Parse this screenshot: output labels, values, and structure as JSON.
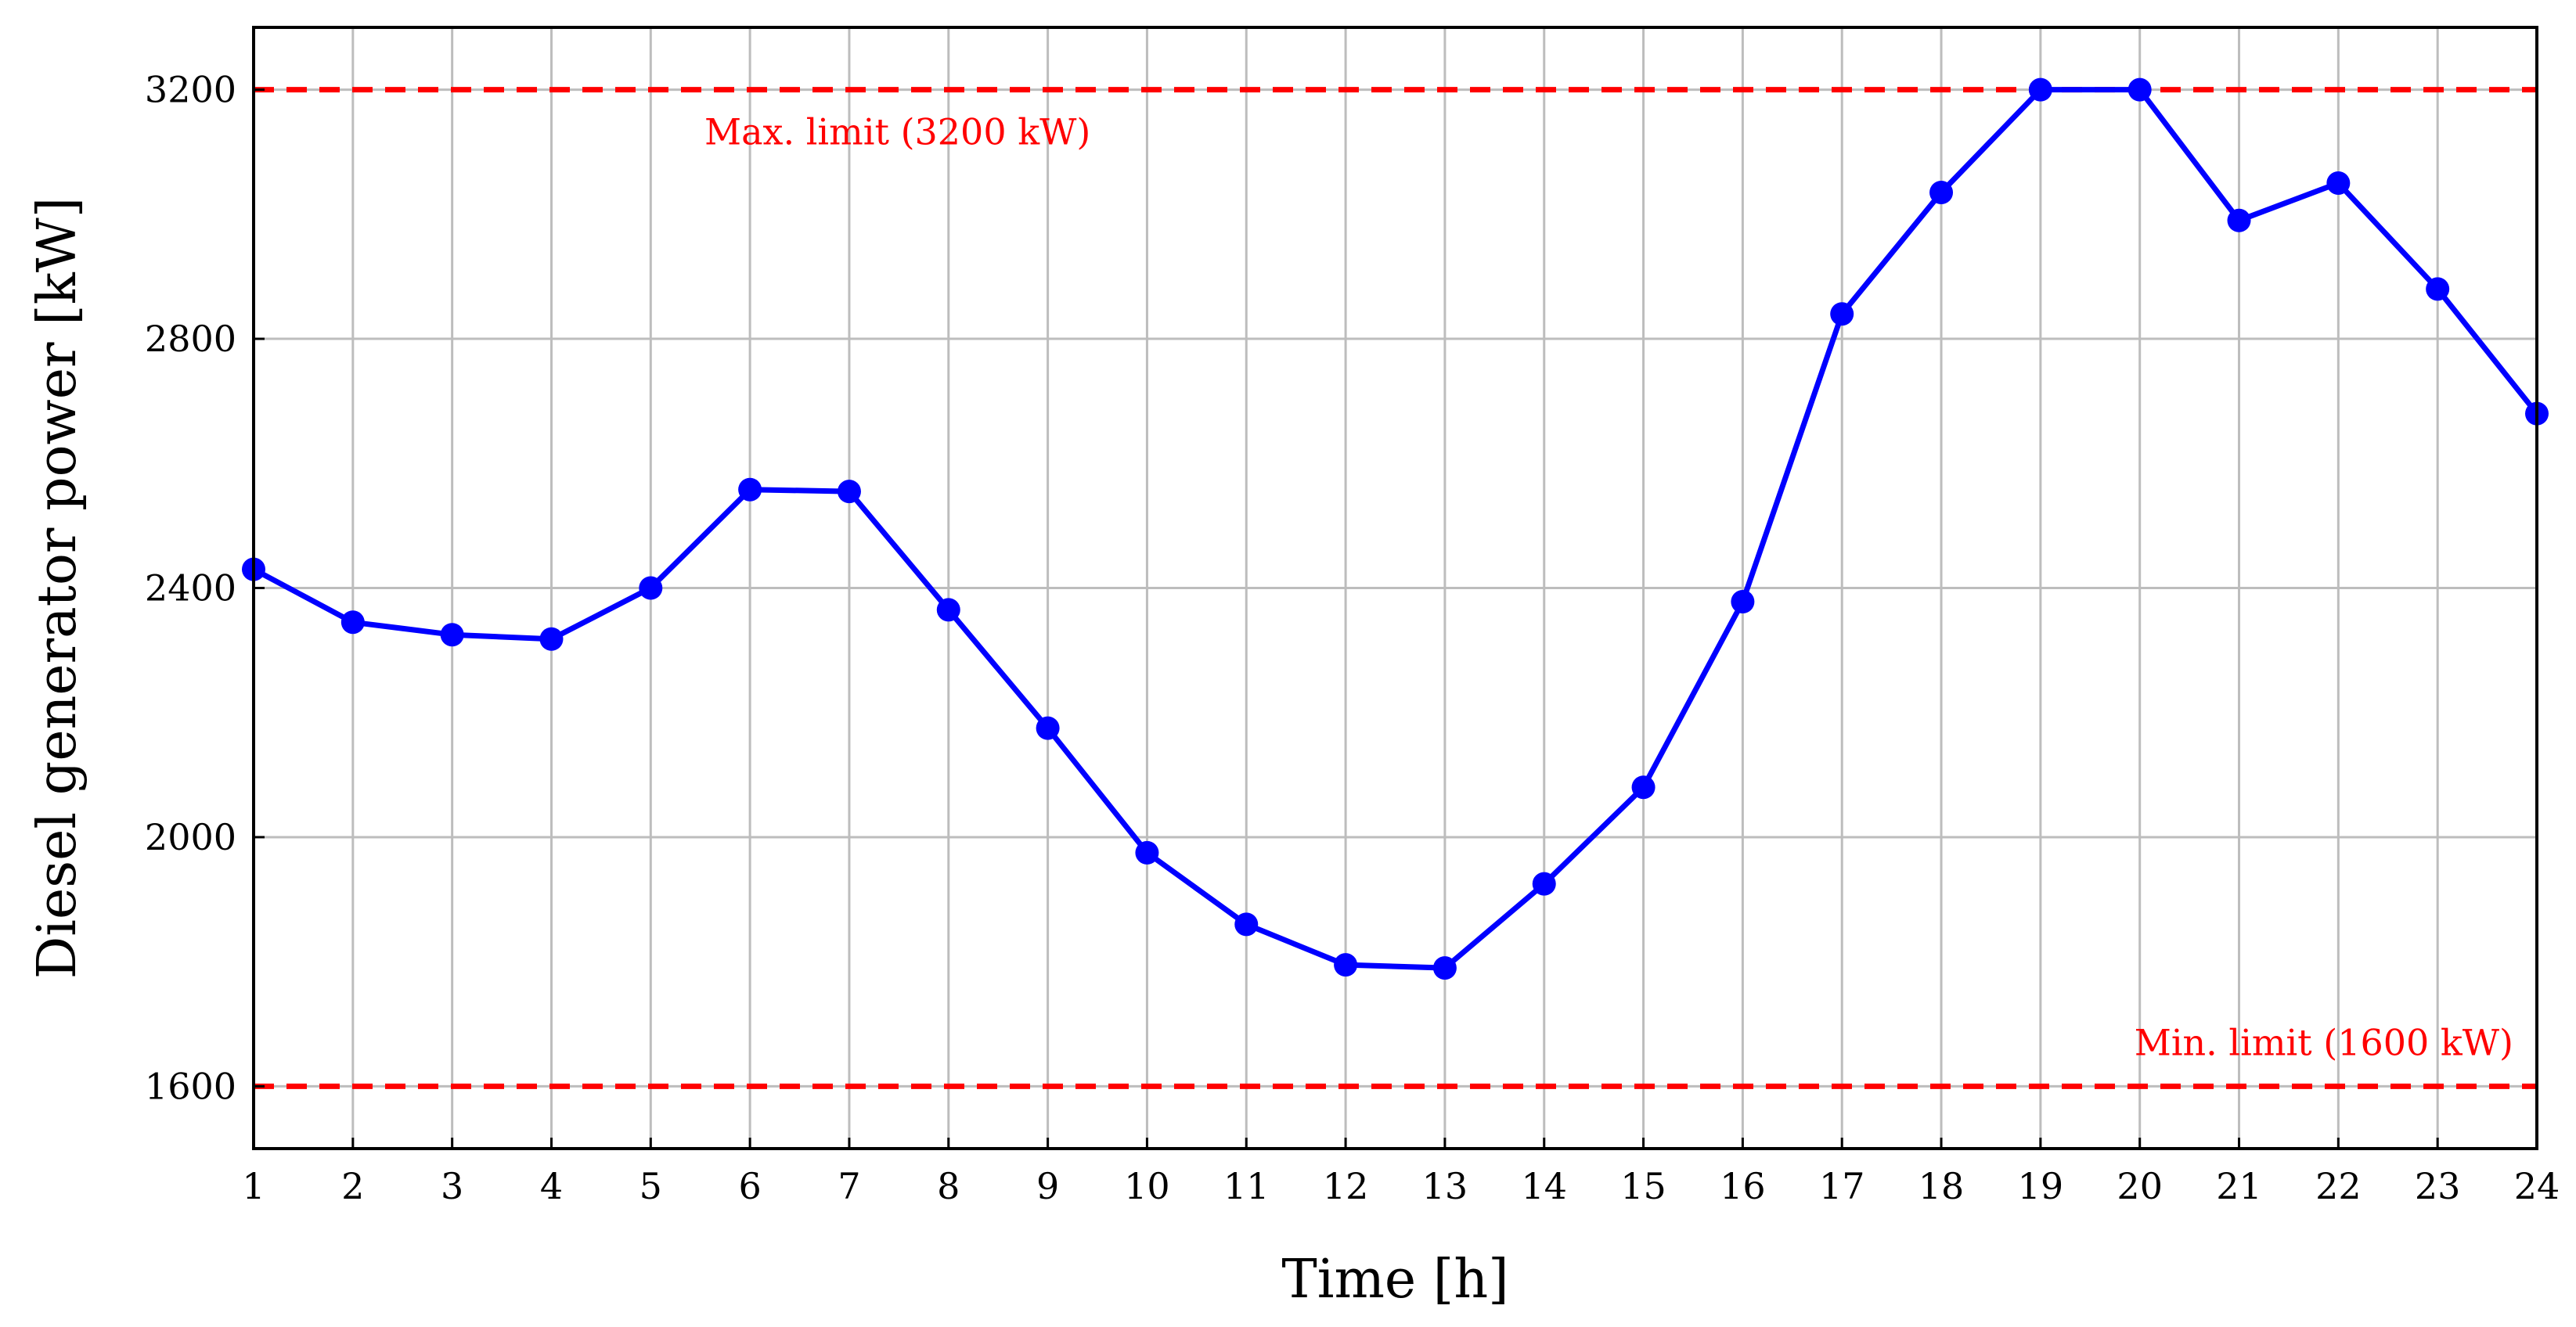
{
  "chart_data": {
    "type": "line",
    "title": "",
    "xlabel": "Time [h]",
    "ylabel": "Diesel generator power [kW]",
    "xlim": [
      1,
      24
    ],
    "ylim": [
      1500,
      3300
    ],
    "x_ticks": [
      "1",
      "2",
      "3",
      "4",
      "5",
      "6",
      "7",
      "8",
      "9",
      "10",
      "11",
      "12",
      "13",
      "14",
      "15",
      "16",
      "17",
      "18",
      "19",
      "20",
      "21",
      "22",
      "23",
      "24"
    ],
    "y_ticks": [
      "1600",
      "2000",
      "2400",
      "2800",
      "3200"
    ],
    "grid": true,
    "x": [
      1,
      2,
      3,
      4,
      5,
      6,
      7,
      8,
      9,
      10,
      11,
      12,
      13,
      14,
      15,
      16,
      17,
      18,
      19,
      20,
      21,
      22,
      23,
      24
    ],
    "series": [
      {
        "values": [
          2430,
          2345,
          2325,
          2318,
          2400,
          2558,
          2555,
          2365,
          2175,
          1975,
          1860,
          1795,
          1790,
          1925,
          2080,
          2378,
          2840,
          3035,
          3200,
          3200,
          2990,
          3050,
          2880,
          2680
        ],
        "color": "#0000ff",
        "marker": "circle"
      }
    ],
    "reference_lines": [
      {
        "value": 3200,
        "label": "Max. limit (3200 kW)",
        "color": "#ff0000",
        "style": "dashed"
      },
      {
        "value": 1600,
        "label": "Min. limit (1600 kW)",
        "color": "#ff0000",
        "style": "dashed"
      }
    ]
  }
}
